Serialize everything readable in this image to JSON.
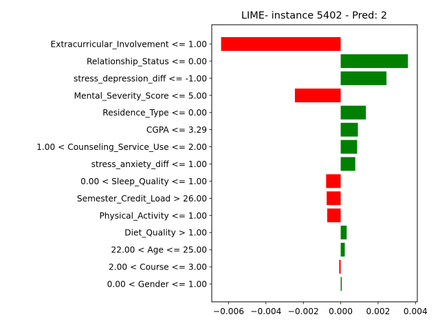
{
  "chart_data": {
    "type": "bar",
    "orientation": "horizontal",
    "title": "LIME- instance 5402 - Pred: 2",
    "xlabel": "",
    "ylabel": "",
    "categories": [
      "Extracurricular_Involvement <= 1.00",
      "Relationship_Status <= 0.00",
      "stress_depression_diff <= -1.00",
      "Mental_Severity_Score <= 5.00",
      "Residence_Type <= 0.00",
      "CGPA <= 3.29",
      "1.00 < Counseling_Service_Use <= 2.00",
      "stress_anxiety_diff <= 1.00",
      "0.00 < Sleep_Quality <= 1.00",
      "Semester_Credit_Load > 26.00",
      "Physical_Activity <= 1.00",
      "Diet_Quality > 1.00",
      "22.00 < Age <= 25.00",
      "2.00 < Course <= 3.00",
      "0.00 < Gender <= 1.00"
    ],
    "values": [
      -0.0064,
      0.0036,
      0.00245,
      -0.00245,
      0.00135,
      0.00092,
      0.00088,
      0.00078,
      -0.00078,
      -0.00075,
      -0.00072,
      0.00032,
      0.00022,
      -8e-05,
      6e-05
    ],
    "xlim": [
      -0.0069,
      0.0041
    ],
    "xticks": [
      -0.006,
      -0.004,
      -0.002,
      0.0,
      0.002,
      0.004
    ],
    "xtick_labels": [
      "−0.006",
      "−0.004",
      "−0.002",
      "0.000",
      "0.002",
      "0.004"
    ],
    "positive_color": "#008000",
    "negative_color": "#ff0000",
    "grid": false,
    "legend": "none"
  }
}
